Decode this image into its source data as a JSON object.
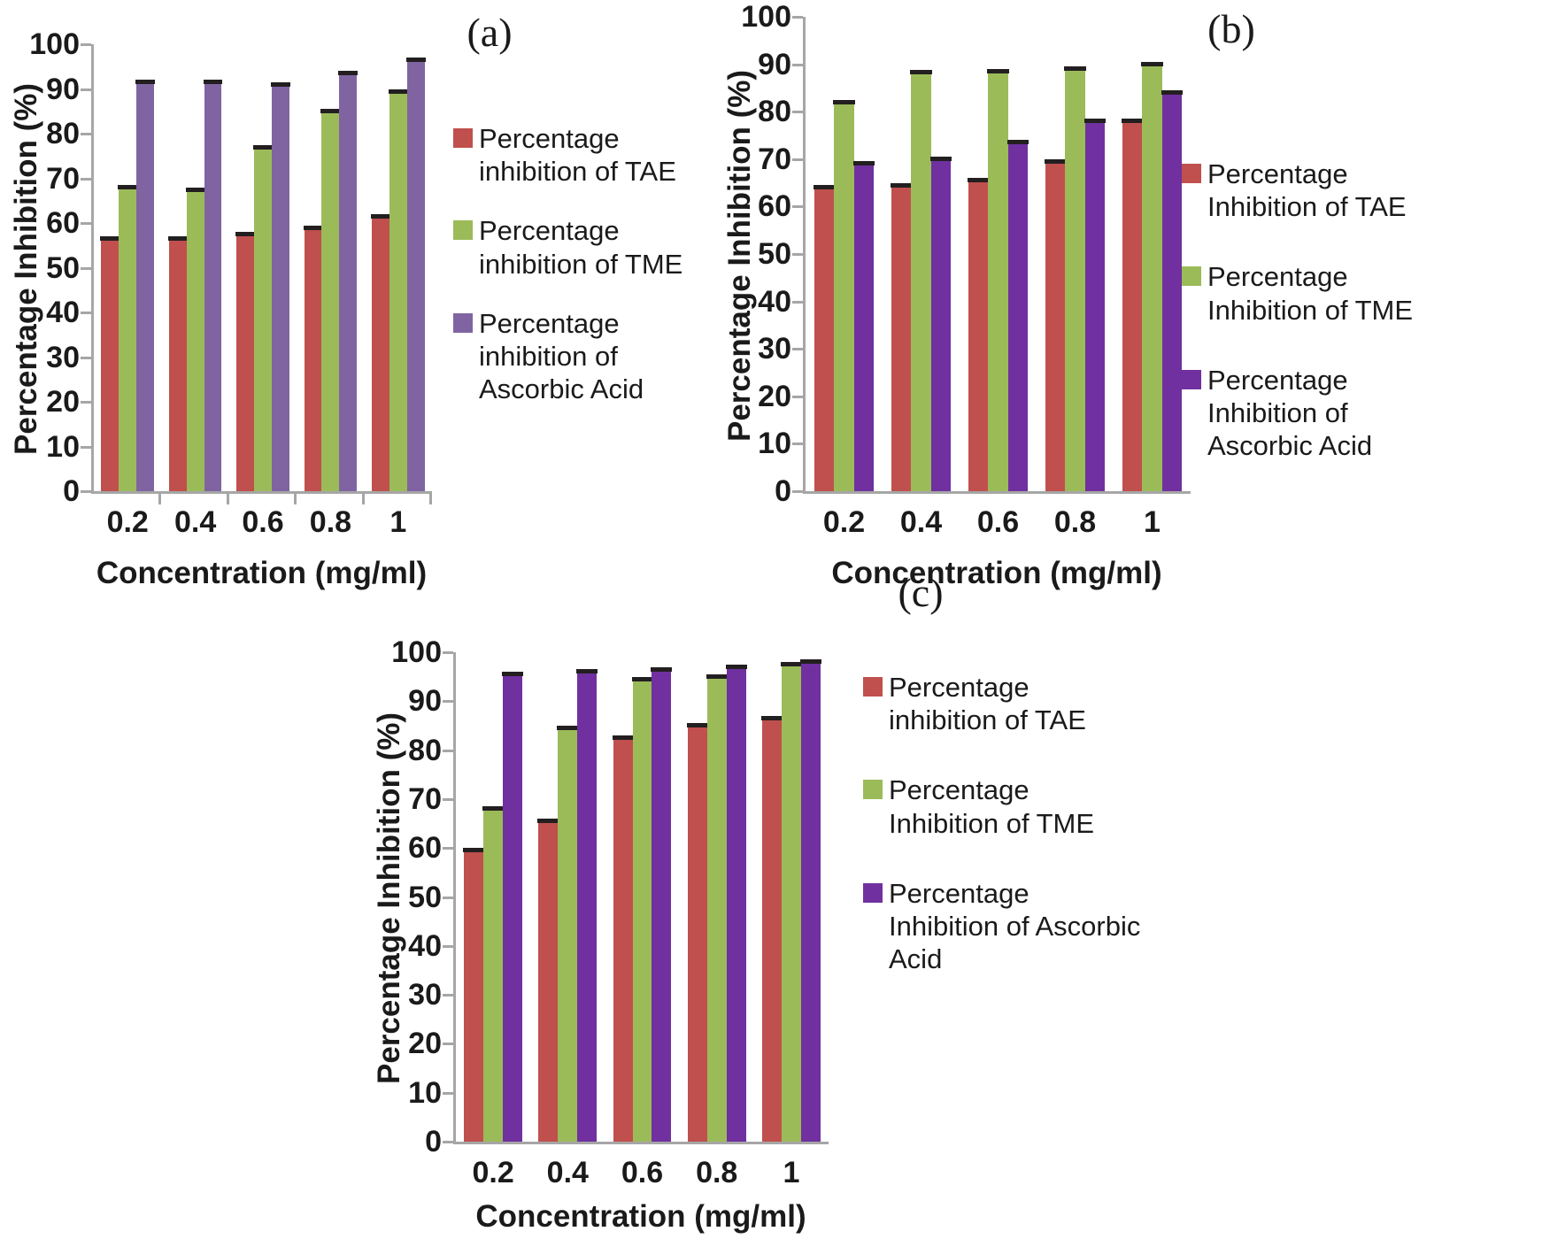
{
  "styles": {
    "axis_color": "#A6A6A6",
    "error_cap_color": "#231F20",
    "text_color": "#1A1A1A",
    "background": "#FFFFFF"
  },
  "chart_data": [
    {
      "type": "bar",
      "panel_label": "(a)",
      "xlabel": "Concentration (mg/ml)",
      "ylabel": "Percentage Inhibition (%)",
      "ylim": [
        0,
        100
      ],
      "yticks": [
        "0",
        "10",
        "20",
        "30",
        "40",
        "50",
        "60",
        "70",
        "80",
        "90",
        "100"
      ],
      "categories": [
        "0.2",
        "0.4",
        "0.6",
        "0.8",
        "1"
      ],
      "grid": false,
      "legend_position": "right",
      "x_boundary_ticks": true,
      "error_caps": true,
      "series": [
        {
          "name": "Percentage inhibition of TAE",
          "color": "#C0504D",
          "values": [
            57,
            57,
            58,
            59.5,
            62
          ]
        },
        {
          "name": "Percentage inhibition of TME",
          "color": "#9BBB59",
          "values": [
            68.5,
            68,
            77.5,
            85.5,
            90
          ]
        },
        {
          "name": "Percentage inhibition of Ascorbic Acid",
          "color": "#8064A2",
          "values": [
            92,
            92,
            91.5,
            94,
            97
          ]
        }
      ],
      "legend_lines": [
        [
          "Percentage",
          "inhibition of TAE"
        ],
        [
          "Percentage",
          "inhibition of TME"
        ],
        [
          "Percentage",
          "inhibition of",
          "Ascorbic Acid"
        ]
      ]
    },
    {
      "type": "bar",
      "panel_label": "(b)",
      "xlabel": "Concentration (mg/ml)",
      "ylabel": "Percentage Inhibition (%)",
      "ylim": [
        0,
        100
      ],
      "yticks": [
        "0",
        "10",
        "20",
        "30",
        "40",
        "50",
        "60",
        "70",
        "80",
        "90",
        "100"
      ],
      "categories": [
        "0.2",
        "0.4",
        "0.6",
        "0.8",
        "1"
      ],
      "grid": false,
      "legend_position": "right",
      "x_boundary_ticks": false,
      "error_caps": true,
      "series": [
        {
          "name": "Percentage Inhibition of TAE",
          "color": "#C0504D",
          "values": [
            64.5,
            65,
            66,
            70,
            78.5
          ]
        },
        {
          "name": "Percentage Inhibition of TME",
          "color": "#9BBB59",
          "values": [
            82.5,
            88.8,
            89,
            89.5,
            90.5
          ]
        },
        {
          "name": "Percentage Inhibition of Ascorbic Acid",
          "color": "#7030A0",
          "values": [
            69.5,
            70.5,
            74,
            78.5,
            84.5
          ]
        }
      ],
      "legend_lines": [
        [
          "Percentage",
          "Inhibition of TAE"
        ],
        [
          "Percentage",
          "Inhibition of TME"
        ],
        [
          "Percentage",
          "Inhibition of",
          "Ascorbic Acid"
        ]
      ]
    },
    {
      "type": "bar",
      "panel_label": "(c)",
      "xlabel": "Concentration (mg/ml)",
      "ylabel": "Percentage Inhibition (%)",
      "ylim": [
        0,
        100
      ],
      "yticks": [
        "0",
        "10",
        "20",
        "30",
        "40",
        "50",
        "60",
        "70",
        "80",
        "90",
        "100"
      ],
      "categories": [
        "0.2",
        "0.4",
        "0.6",
        "0.8",
        "1"
      ],
      "grid": false,
      "legend_position": "right",
      "x_boundary_ticks": false,
      "error_caps": true,
      "series": [
        {
          "name": "Percentage inhibition of TAE",
          "color": "#C0504D",
          "values": [
            60,
            66,
            83,
            85.5,
            87
          ]
        },
        {
          "name": "Percentage Inhibition of TME",
          "color": "#9BBB59",
          "values": [
            68.5,
            85,
            95,
            95.5,
            98
          ]
        },
        {
          "name": "Percentage Inhibition of Ascorbic Acid",
          "color": "#7030A0",
          "values": [
            96,
            96.5,
            97,
            97.5,
            98.5
          ]
        }
      ],
      "legend_lines": [
        [
          "Percentage",
          "inhibition of TAE"
        ],
        [
          "Percentage",
          "Inhibition of TME"
        ],
        [
          "Percentage",
          "Inhibition of Ascorbic",
          "Acid"
        ]
      ]
    }
  ]
}
